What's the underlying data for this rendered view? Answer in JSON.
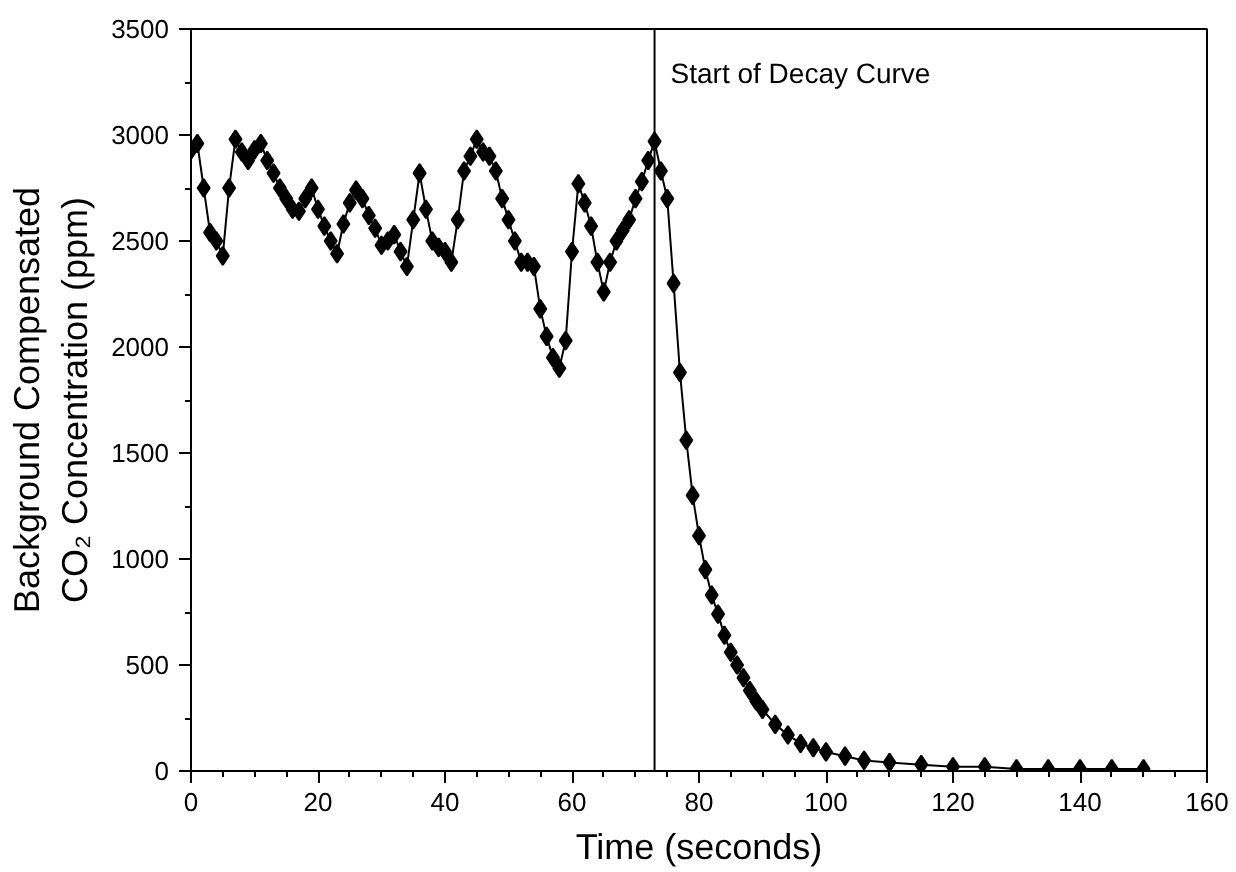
{
  "chart_data": {
    "type": "line",
    "xlabel": "Time (seconds)",
    "ylabel": "Background Compensated\nCO₂ Concentration (ppm)",
    "xlim": [
      0,
      160
    ],
    "ylim": [
      0,
      3500
    ],
    "xticks": [
      0,
      {
        "value": 5,
        "label": null
      },
      {
        "value": 10,
        "label": null
      },
      {
        "value": 15,
        "label": null
      },
      20,
      {
        "value": 25,
        "label": null
      },
      {
        "value": 30,
        "label": null
      },
      {
        "value": 35,
        "label": null
      },
      40,
      {
        "value": 45,
        "label": null
      },
      {
        "value": 50,
        "label": null
      },
      {
        "value": 55,
        "label": null
      },
      60,
      {
        "value": 65,
        "label": null
      },
      {
        "value": 70,
        "label": null
      },
      {
        "value": 75,
        "label": null
      },
      80,
      {
        "value": 85,
        "label": null
      },
      {
        "value": 90,
        "label": null
      },
      {
        "value": 95,
        "label": null
      },
      100,
      {
        "value": 105,
        "label": null
      },
      {
        "value": 110,
        "label": null
      },
      {
        "value": 115,
        "label": null
      },
      120,
      {
        "value": 125,
        "label": null
      },
      {
        "value": 130,
        "label": null
      },
      {
        "value": 135,
        "label": null
      },
      140,
      {
        "value": 145,
        "label": null
      },
      {
        "value": 150,
        "label": null
      },
      {
        "value": 155,
        "label": null
      },
      160
    ],
    "yticks": [
      0,
      {
        "value": 250,
        "label": null
      },
      500,
      {
        "value": 750,
        "label": null
      },
      1000,
      {
        "value": 1250,
        "label": null
      },
      1500,
      {
        "value": 1750,
        "label": null
      },
      2000,
      {
        "value": 2250,
        "label": null
      },
      2500,
      {
        "value": 2750,
        "label": null
      },
      3000,
      {
        "value": 3250,
        "label": null
      },
      3500
    ],
    "grid": false,
    "marker": "diamond",
    "line_style": "solid",
    "ref_lines": [
      {
        "axis": "x",
        "value": 73,
        "label": "Start of Decay Curve",
        "color": "#000000"
      }
    ],
    "series": [
      {
        "color": "#000000",
        "x": [
          0,
          1,
          2,
          3,
          4,
          5,
          6,
          7,
          8,
          9,
          10,
          11,
          12,
          13,
          14,
          15,
          16,
          17,
          18,
          19,
          20,
          21,
          22,
          23,
          24,
          25,
          26,
          27,
          28,
          29,
          30,
          31,
          32,
          33,
          34,
          35,
          36,
          37,
          38,
          39,
          40,
          41,
          42,
          43,
          44,
          45,
          46,
          47,
          48,
          49,
          50,
          51,
          52,
          53,
          54,
          55,
          56,
          57,
          58,
          59,
          60,
          61,
          62,
          63,
          64,
          65,
          66,
          67,
          68,
          69,
          70,
          71,
          72,
          73,
          74,
          75,
          76,
          77,
          78,
          79,
          80,
          81,
          82,
          83,
          84,
          85,
          86,
          87,
          88,
          89,
          90,
          92,
          94,
          96,
          98,
          100,
          103,
          106,
          110,
          115,
          120,
          125,
          130,
          135,
          140,
          145,
          150
        ],
        "values": [
          2930,
          2960,
          2750,
          2540,
          2500,
          2430,
          2750,
          2980,
          2920,
          2880,
          2930,
          2960,
          2880,
          2820,
          2750,
          2700,
          2650,
          2640,
          2700,
          2750,
          2650,
          2570,
          2500,
          2440,
          2580,
          2680,
          2740,
          2700,
          2620,
          2560,
          2480,
          2500,
          2530,
          2450,
          2380,
          2600,
          2820,
          2650,
          2500,
          2470,
          2450,
          2400,
          2600,
          2830,
          2900,
          2980,
          2920,
          2900,
          2830,
          2700,
          2600,
          2500,
          2400,
          2400,
          2380,
          2180,
          2050,
          1950,
          1900,
          2030,
          2450,
          2770,
          2680,
          2570,
          2400,
          2260,
          2400,
          2500,
          2550,
          2600,
          2700,
          2780,
          2880,
          2970,
          2830,
          2700,
          2300,
          1880,
          1560,
          1300,
          1110,
          950,
          830,
          740,
          640,
          560,
          500,
          440,
          380,
          330,
          290,
          220,
          170,
          130,
          110,
          90,
          70,
          50,
          40,
          30,
          20,
          20,
          10,
          10,
          10,
          10,
          10
        ]
      }
    ]
  }
}
